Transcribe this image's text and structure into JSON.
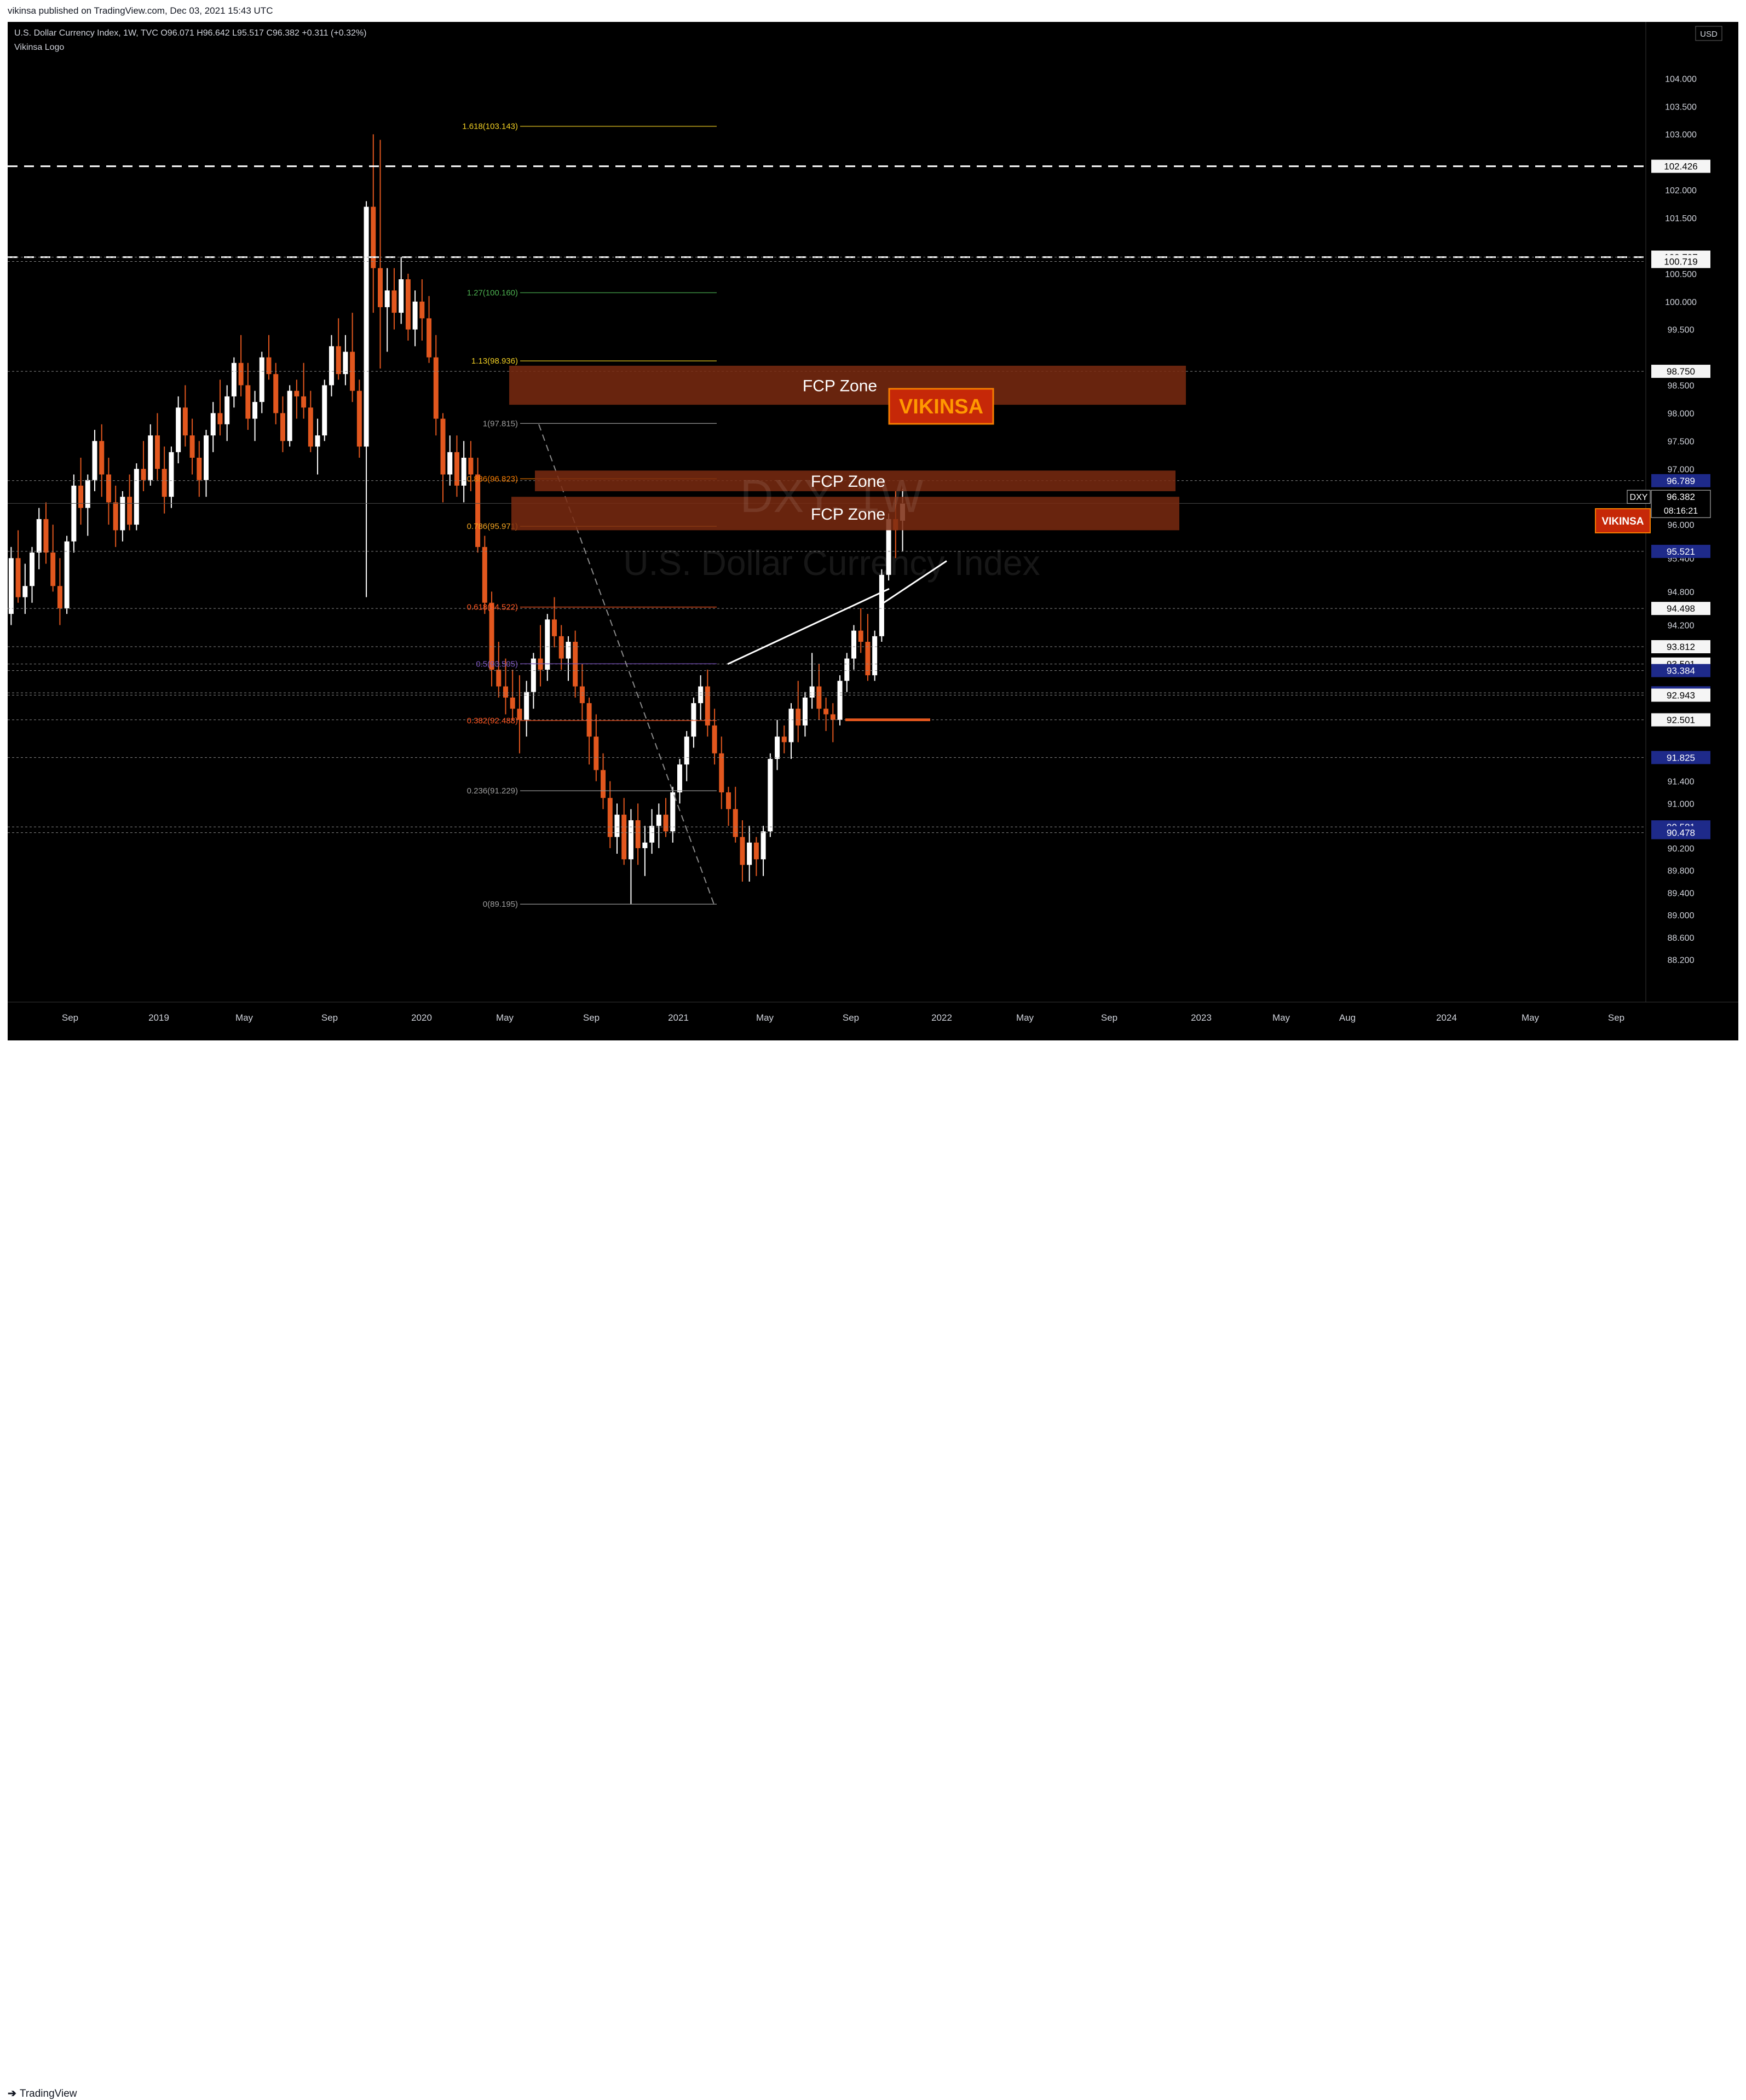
{
  "header": {
    "published": "vikinsa published on TradingView.com, Dec 03, 2021 15:43 UTC"
  },
  "legend": {
    "symbol_line": "U.S. Dollar Currency Index, 1W, TVC",
    "open": "O96.071",
    "high": "H96.642",
    "low": "L95.517",
    "close": "C96.382",
    "change": "+0.311 (+0.32%)",
    "logo_line": "Vikinsa Logo"
  },
  "footer": {
    "brand": "TradingView"
  },
  "colors": {
    "background": "#000000",
    "up": "#ffffff",
    "down": "#e2571e",
    "zone": "#7a2a10",
    "axis_badge": "#1e2a8a",
    "brand_badge": "#c62808"
  },
  "chart_data": {
    "type": "candlestick",
    "title": "",
    "watermark_symbol": "DXY, 1W",
    "watermark_name": "U.S. Dollar Currency Index",
    "currency": "USD",
    "ylim": [
      87.9,
      104.5
    ],
    "y_ticks": [
      "88.200",
      "88.600",
      "89.000",
      "89.400",
      "89.800",
      "90.200",
      "91.000",
      "91.400",
      "94.200",
      "94.800",
      "95.400",
      "96.000",
      "97.000",
      "97.500",
      "98.000",
      "98.500",
      "99.500",
      "100.000",
      "100.500",
      "101.500",
      "102.000",
      "103.000",
      "103.500",
      "104.000"
    ],
    "x_ticks": [
      "Sep",
      "2019",
      "May",
      "Sep",
      "2020",
      "May",
      "Sep",
      "2021",
      "May",
      "Sep",
      "2022",
      "May",
      "Sep",
      "2023",
      "May",
      "Aug",
      "2024",
      "May",
      "Sep"
    ],
    "current": {
      "value": 96.382,
      "symbol": "DXY",
      "price": "96.382",
      "countdown": "08:16:21"
    },
    "price_badges": [
      {
        "label": "102.426",
        "value": 102.426,
        "style": "light"
      },
      {
        "label": "100.797",
        "value": 100.797,
        "style": "light"
      },
      {
        "label": "100.719",
        "value": 100.719,
        "style": "light"
      },
      {
        "label": "98.750",
        "value": 98.75,
        "style": "light"
      },
      {
        "label": "96.789",
        "value": 96.789,
        "style": "dark"
      },
      {
        "label": "95.521",
        "value": 95.521,
        "style": "dark"
      },
      {
        "label": "94.498",
        "value": 94.498,
        "style": "light"
      },
      {
        "label": "93.812",
        "value": 93.812,
        "style": "light"
      },
      {
        "label": "93.501",
        "value": 93.501,
        "style": "light"
      },
      {
        "label": "93.384",
        "value": 93.384,
        "style": "dark"
      },
      {
        "label": "92.985",
        "value": 92.985,
        "style": "dark"
      },
      {
        "label": "92.943",
        "value": 92.943,
        "style": "light"
      },
      {
        "label": "92.501",
        "value": 92.501,
        "style": "light"
      },
      {
        "label": "91.825",
        "value": 91.825,
        "style": "dark"
      },
      {
        "label": "90.581",
        "value": 90.581,
        "style": "dark"
      },
      {
        "label": "90.478",
        "value": 90.478,
        "style": "dark"
      }
    ],
    "fib_levels": [
      {
        "label": "1.618(103.143)",
        "value": 103.143,
        "color": "#f2d024"
      },
      {
        "label": "1.27(100.160)",
        "value": 100.16,
        "color": "#4caf50"
      },
      {
        "label": "1.13(98.936)",
        "value": 98.936,
        "color": "#f2d024"
      },
      {
        "label": "1(97.815)",
        "value": 97.815,
        "color": "#9e9e9e"
      },
      {
        "label": "0.886(96.823)",
        "value": 96.823,
        "color": "#f57c00"
      },
      {
        "label": "0.786(95.971)",
        "value": 95.971,
        "color": "#f5a623"
      },
      {
        "label": "0.618(94.522)",
        "value": 94.522,
        "color": "#ff5722"
      },
      {
        "label": "0.5(93.505)",
        "value": 93.505,
        "color": "#7e57c2"
      },
      {
        "label": "0.382(92.488)",
        "value": 92.488,
        "color": "#ff5722"
      },
      {
        "label": "0.236(91.229)",
        "value": 91.229,
        "color": "#9e9e9e"
      },
      {
        "label": "0(89.195)",
        "value": 89.195,
        "color": "#9e9e9e"
      }
    ],
    "zones": [
      {
        "label": "FCP Zone",
        "top": 98.85,
        "bottom": 98.15
      },
      {
        "label": "FCP Zone",
        "top": 96.97,
        "bottom": 96.6
      },
      {
        "label": "FCP Zone",
        "top": 96.5,
        "bottom": 95.9
      }
    ],
    "horizontal_lines": [
      {
        "value": 102.426,
        "style": "dashed-white"
      },
      {
        "value": 100.797,
        "style": "dashed-white"
      }
    ],
    "brand": "VIKINSA",
    "series": [
      {
        "name": "",
        "values": [
          [
            94.4,
            95.6,
            94.2,
            95.4
          ],
          [
            95.4,
            95.9,
            94.6,
            94.7
          ],
          [
            94.7,
            95.3,
            94.4,
            94.9
          ],
          [
            94.9,
            95.6,
            94.6,
            95.5
          ],
          [
            95.5,
            96.3,
            95.2,
            96.1
          ],
          [
            96.1,
            96.4,
            95.3,
            95.5
          ],
          [
            95.5,
            96.0,
            94.8,
            94.9
          ],
          [
            94.9,
            95.4,
            94.2,
            94.5
          ],
          [
            94.5,
            95.8,
            94.4,
            95.7
          ],
          [
            95.7,
            96.9,
            95.5,
            96.7
          ],
          [
            96.7,
            97.2,
            96.0,
            96.3
          ],
          [
            96.3,
            96.9,
            95.8,
            96.8
          ],
          [
            96.8,
            97.7,
            96.6,
            97.5
          ],
          [
            97.5,
            97.8,
            96.5,
            96.9
          ],
          [
            96.9,
            97.2,
            96.0,
            96.4
          ],
          [
            96.4,
            96.7,
            95.6,
            95.9
          ],
          [
            95.9,
            96.6,
            95.7,
            96.5
          ],
          [
            96.5,
            96.9,
            95.9,
            96.0
          ],
          [
            96.0,
            97.1,
            95.9,
            97.0
          ],
          [
            97.0,
            97.5,
            96.6,
            96.8
          ],
          [
            96.8,
            97.8,
            96.7,
            97.6
          ],
          [
            97.6,
            98.0,
            96.8,
            97.0
          ],
          [
            97.0,
            97.4,
            96.2,
            96.5
          ],
          [
            96.5,
            97.4,
            96.3,
            97.3
          ],
          [
            97.3,
            98.3,
            97.1,
            98.1
          ],
          [
            98.1,
            98.5,
            97.4,
            97.6
          ],
          [
            97.6,
            97.9,
            96.9,
            97.2
          ],
          [
            97.2,
            97.5,
            96.5,
            96.8
          ],
          [
            96.8,
            97.7,
            96.5,
            97.6
          ],
          [
            97.6,
            98.2,
            97.3,
            98.0
          ],
          [
            98.0,
            98.6,
            97.6,
            97.8
          ],
          [
            97.8,
            98.5,
            97.5,
            98.3
          ],
          [
            98.3,
            99.0,
            98.1,
            98.9
          ],
          [
            98.9,
            99.4,
            98.3,
            98.5
          ],
          [
            98.5,
            98.9,
            97.7,
            97.9
          ],
          [
            97.9,
            98.4,
            97.5,
            98.2
          ],
          [
            98.2,
            99.1,
            98.0,
            99.0
          ],
          [
            99.0,
            99.4,
            98.6,
            98.7
          ],
          [
            98.7,
            98.9,
            97.8,
            98.0
          ],
          [
            98.0,
            98.3,
            97.3,
            97.5
          ],
          [
            97.5,
            98.5,
            97.4,
            98.4
          ],
          [
            98.4,
            98.6,
            97.9,
            98.3
          ],
          [
            98.3,
            98.9,
            97.9,
            98.1
          ],
          [
            98.1,
            98.4,
            97.3,
            97.4
          ],
          [
            97.4,
            97.9,
            96.9,
            97.6
          ],
          [
            97.6,
            98.6,
            97.5,
            98.5
          ],
          [
            98.5,
            99.4,
            98.3,
            99.2
          ],
          [
            99.2,
            99.7,
            98.6,
            98.7
          ],
          [
            98.7,
            99.4,
            98.5,
            99.1
          ],
          [
            99.1,
            99.8,
            98.2,
            98.4
          ],
          [
            98.4,
            98.6,
            97.2,
            97.4
          ],
          [
            97.4,
            101.8,
            94.7,
            101.7
          ],
          [
            101.7,
            103.0,
            99.8,
            100.6
          ],
          [
            100.6,
            102.9,
            98.8,
            99.9
          ],
          [
            99.9,
            100.6,
            99.1,
            100.2
          ],
          [
            100.2,
            100.6,
            99.5,
            99.8
          ],
          [
            99.8,
            100.8,
            99.6,
            100.4
          ],
          [
            100.4,
            100.5,
            99.3,
            99.5
          ],
          [
            99.5,
            100.2,
            99.2,
            100.0
          ],
          [
            100.0,
            100.4,
            99.3,
            99.7
          ],
          [
            99.7,
            100.1,
            98.9,
            99.0
          ],
          [
            99.0,
            99.4,
            97.6,
            97.9
          ],
          [
            97.9,
            98.0,
            96.4,
            96.9
          ],
          [
            96.9,
            97.6,
            96.7,
            97.3
          ],
          [
            97.3,
            97.6,
            96.5,
            96.7
          ],
          [
            96.7,
            97.5,
            96.4,
            97.2
          ],
          [
            97.2,
            97.5,
            96.6,
            96.9
          ],
          [
            96.9,
            97.2,
            95.5,
            95.6
          ],
          [
            95.6,
            95.8,
            94.4,
            94.6
          ],
          [
            94.6,
            94.8,
            93.1,
            93.4
          ],
          [
            93.4,
            93.9,
            92.9,
            93.1
          ],
          [
            93.1,
            93.6,
            92.6,
            92.9
          ],
          [
            92.9,
            93.4,
            92.5,
            92.7
          ],
          [
            92.7,
            93.3,
            91.9,
            92.5
          ],
          [
            92.5,
            93.2,
            92.2,
            93.0
          ],
          [
            93.0,
            93.7,
            92.7,
            93.6
          ],
          [
            93.6,
            94.2,
            93.1,
            93.4
          ],
          [
            93.4,
            94.4,
            93.2,
            94.3
          ],
          [
            94.3,
            94.7,
            93.8,
            94.0
          ],
          [
            94.0,
            94.2,
            93.4,
            93.6
          ],
          [
            93.6,
            94.0,
            93.2,
            93.9
          ],
          [
            93.9,
            94.1,
            92.9,
            93.1
          ],
          [
            93.1,
            93.5,
            92.5,
            92.8
          ],
          [
            92.8,
            92.9,
            91.7,
            92.2
          ],
          [
            92.2,
            92.6,
            91.4,
            91.6
          ],
          [
            91.6,
            91.9,
            90.9,
            91.1
          ],
          [
            91.1,
            91.4,
            90.2,
            90.4
          ],
          [
            90.4,
            91.0,
            90.1,
            90.8
          ],
          [
            90.8,
            91.1,
            89.9,
            90.0
          ],
          [
            90.0,
            90.9,
            89.2,
            90.7
          ],
          [
            90.7,
            91.0,
            89.9,
            90.2
          ],
          [
            90.2,
            90.6,
            89.7,
            90.3
          ],
          [
            90.3,
            90.9,
            90.1,
            90.6
          ],
          [
            90.6,
            91.0,
            90.2,
            90.8
          ],
          [
            90.8,
            91.1,
            90.4,
            90.5
          ],
          [
            90.5,
            91.3,
            90.3,
            91.2
          ],
          [
            91.2,
            91.8,
            91.0,
            91.7
          ],
          [
            91.7,
            92.3,
            91.4,
            92.2
          ],
          [
            92.2,
            92.9,
            92.0,
            92.8
          ],
          [
            92.8,
            93.3,
            92.5,
            93.1
          ],
          [
            93.1,
            93.4,
            92.2,
            92.4
          ],
          [
            92.4,
            92.7,
            91.7,
            91.9
          ],
          [
            91.9,
            92.2,
            90.9,
            91.2
          ],
          [
            91.2,
            91.3,
            90.6,
            90.9
          ],
          [
            90.9,
            91.3,
            90.3,
            90.4
          ],
          [
            90.4,
            90.7,
            89.6,
            89.9
          ],
          [
            89.9,
            90.6,
            89.6,
            90.3
          ],
          [
            90.3,
            90.4,
            89.7,
            90.0
          ],
          [
            90.0,
            90.6,
            89.7,
            90.5
          ],
          [
            90.5,
            91.9,
            90.4,
            91.8
          ],
          [
            91.8,
            92.5,
            91.6,
            92.2
          ],
          [
            92.2,
            92.4,
            91.9,
            92.1
          ],
          [
            92.1,
            92.8,
            91.8,
            92.7
          ],
          [
            92.7,
            93.2,
            92.1,
            92.4
          ],
          [
            92.4,
            93.0,
            92.2,
            92.9
          ],
          [
            92.9,
            93.7,
            92.7,
            93.1
          ],
          [
            93.1,
            93.5,
            92.5,
            92.7
          ],
          [
            92.7,
            92.9,
            92.3,
            92.6
          ],
          [
            92.6,
            92.8,
            92.1,
            92.5
          ],
          [
            92.5,
            93.3,
            92.4,
            93.2
          ],
          [
            93.2,
            93.7,
            93.0,
            93.6
          ],
          [
            93.6,
            94.2,
            93.4,
            94.1
          ],
          [
            94.1,
            94.5,
            93.7,
            93.9
          ],
          [
            93.9,
            94.4,
            93.2,
            93.3
          ],
          [
            93.3,
            94.1,
            93.2,
            94.0
          ],
          [
            94.0,
            95.2,
            93.9,
            95.1
          ],
          [
            95.1,
            96.2,
            95.0,
            96.1
          ],
          [
            96.1,
            96.6,
            95.4,
            95.9
          ],
          [
            96.071,
            96.642,
            95.517,
            96.382
          ]
        ]
      }
    ]
  }
}
